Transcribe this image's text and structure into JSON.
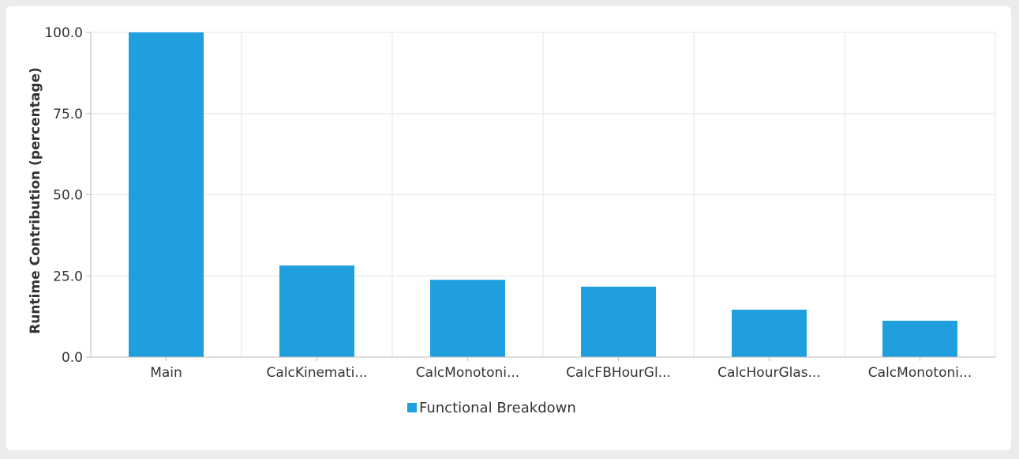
{
  "chart_data": {
    "type": "bar",
    "categories": [
      "Main",
      "CalcKinemati...",
      "CalcMonotoni...",
      "CalcFBHourGl...",
      "CalcHourGlas...",
      "CalcMonotoni..."
    ],
    "series": [
      {
        "name": "Functional Breakdown",
        "values": [
          100.0,
          28.2,
          23.8,
          21.7,
          14.6,
          11.2
        ]
      }
    ],
    "xlabel": "",
    "ylabel": "Runtime Contribution (percentage)",
    "ylim": [
      0,
      100
    ],
    "yticks": [
      0,
      25,
      50,
      75,
      100
    ],
    "ytick_labels": [
      "0.0",
      "25.0",
      "50.0",
      "75.0",
      "100.0"
    ],
    "grid": true,
    "legend_position": "bottom",
    "colors": {
      "bar": "#209fdf",
      "grid": "#e6e6e6",
      "axis": "#bdbdbd"
    }
  }
}
